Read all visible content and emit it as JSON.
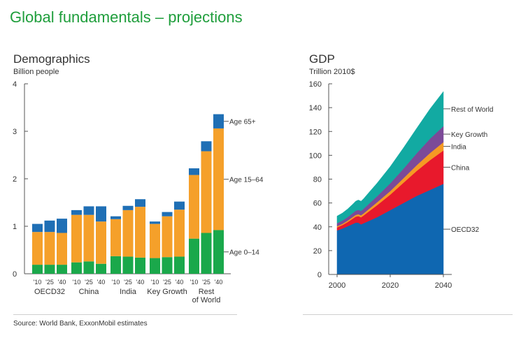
{
  "page": {
    "title": "Global fundamentals – projections",
    "source": "Source: World Bank, ExxonMobil estimates"
  },
  "colors": {
    "title": "#1f9e3c",
    "age_0_14": "#1aa84b",
    "age_15_64": "#f5a02a",
    "age_65_plus": "#1f6fb5",
    "oecd32": "#0f67b1",
    "china": "#e8192c",
    "india": "#f59a23",
    "key_growth": "#7c4a98",
    "rest_of_world": "#12aaa2"
  },
  "chart_data": [
    {
      "type": "bar",
      "stacked": true,
      "title": "Demographics",
      "ylabel": "Billion people",
      "ylim": [
        0,
        4
      ],
      "yticks": [
        0,
        1,
        2,
        3,
        4
      ],
      "grid": false,
      "groups": [
        {
          "name": "OECD32",
          "name_lines": [
            "OECD32"
          ],
          "years": [
            "'10",
            "'25",
            "'40"
          ],
          "age_0_14": [
            0.19,
            0.19,
            0.19
          ],
          "age_15_64": [
            0.69,
            0.69,
            0.67
          ],
          "age_65_plus": [
            0.17,
            0.24,
            0.3
          ]
        },
        {
          "name": "China",
          "name_lines": [
            "China"
          ],
          "years": [
            "'10",
            "'25",
            "'40"
          ],
          "age_0_14": [
            0.24,
            0.26,
            0.21
          ],
          "age_15_64": [
            1.0,
            0.98,
            0.89
          ],
          "age_65_plus": [
            0.1,
            0.18,
            0.32
          ]
        },
        {
          "name": "India",
          "name_lines": [
            "India"
          ],
          "years": [
            "'10",
            "'25",
            "'40"
          ],
          "age_0_14": [
            0.37,
            0.36,
            0.34
          ],
          "age_15_64": [
            0.78,
            0.98,
            1.07
          ],
          "age_65_plus": [
            0.06,
            0.09,
            0.16
          ]
        },
        {
          "name": "Key Growth",
          "name_lines": [
            "Key Growth"
          ],
          "years": [
            "'10",
            "'25",
            "'40"
          ],
          "age_0_14": [
            0.33,
            0.35,
            0.36
          ],
          "age_15_64": [
            0.72,
            0.86,
            0.99
          ],
          "age_65_plus": [
            0.05,
            0.09,
            0.17
          ]
        },
        {
          "name": "Rest of World",
          "name_lines": [
            "Rest",
            "of World"
          ],
          "years": [
            "'10",
            "'25",
            "'40"
          ],
          "age_0_14": [
            0.74,
            0.86,
            0.92
          ],
          "age_15_64": [
            1.34,
            1.72,
            2.14
          ],
          "age_65_plus": [
            0.14,
            0.21,
            0.3
          ]
        }
      ],
      "series": [
        {
          "key": "age_0_14",
          "name": "Age 0–14",
          "color": "#1aa84b"
        },
        {
          "key": "age_15_64",
          "name": "Age 15–64",
          "color": "#f5a02a"
        },
        {
          "key": "age_65_plus",
          "name": "Age 65+",
          "color": "#1f6fb5"
        }
      ],
      "legend": "right, labels at the end of the last bar"
    },
    {
      "type": "area",
      "stacked": true,
      "title": "GDP",
      "ylabel": "Trillion 2010$",
      "ylim": [
        0,
        160
      ],
      "yticks": [
        0,
        20,
        40,
        60,
        80,
        100,
        120,
        140,
        160
      ],
      "xlim": [
        2000,
        2040
      ],
      "xticks": [
        2000,
        2020,
        2040
      ],
      "grid": false,
      "x": [
        2000,
        2002,
        2004,
        2006,
        2007,
        2008,
        2009,
        2010,
        2012,
        2015,
        2020,
        2025,
        2030,
        2035,
        2040
      ],
      "series": [
        {
          "name": "OECD32",
          "color": "#0f67b1",
          "values": [
            37,
            38.5,
            40.5,
            42.5,
            43.5,
            43.5,
            42,
            43,
            45,
            48,
            54,
            60,
            66,
            71,
            76
          ]
        },
        {
          "name": "China",
          "color": "#e8192c",
          "values": [
            2.5,
            3,
            3.5,
            4.5,
            5,
            5.5,
            6,
            6.5,
            8,
            10,
            13,
            17,
            21,
            25,
            28
          ]
        },
        {
          "name": "India",
          "color": "#f59a23",
          "values": [
            1,
            1,
            1.2,
            1.4,
            1.5,
            1.6,
            1.7,
            1.8,
            2,
            2.5,
            3,
            3.8,
            4.8,
            6,
            7
          ]
        },
        {
          "name": "Key Growth",
          "color": "#7c4a98",
          "values": [
            2.5,
            2.7,
            3,
            3.3,
            3.5,
            3.6,
            3.6,
            3.8,
            4.3,
            5,
            6.5,
            8,
            10,
            12,
            13.5
          ]
        },
        {
          "name": "Rest of World",
          "color": "#12aaa2",
          "values": [
            6,
            6.3,
            6.8,
            7.5,
            8,
            8.3,
            8.2,
            8.5,
            9.5,
            11,
            14,
            17.5,
            21,
            25,
            29
          ]
        }
      ],
      "legend": "right, labels at the right edge of each area"
    }
  ]
}
